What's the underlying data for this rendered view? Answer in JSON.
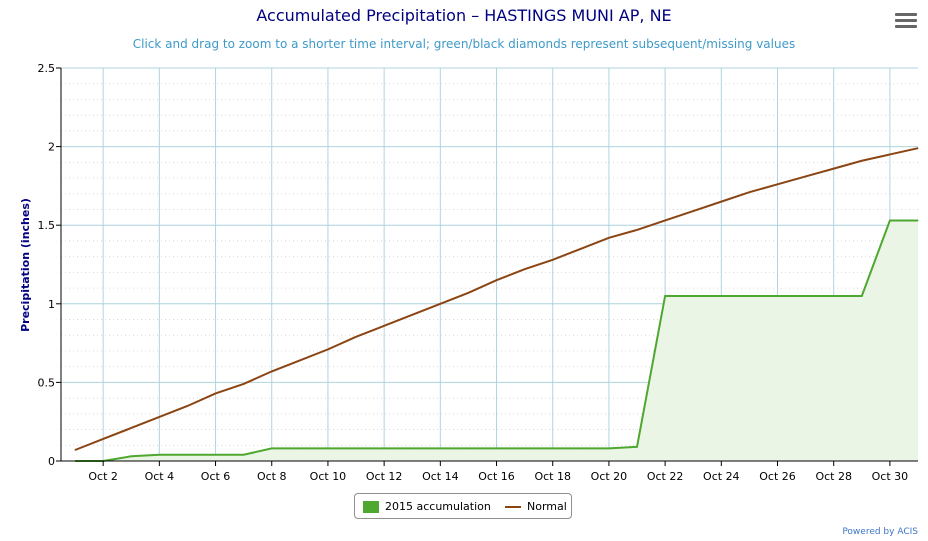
{
  "header": {
    "title": "Accumulated Precipitation – HASTINGS MUNI AP, NE",
    "subtitle": "Click and drag to zoom to a shorter time interval; green/black diamonds represent subsequent/missing values"
  },
  "credits": "Powered by ACIS",
  "colors": {
    "accumulation": "#4ea72e",
    "normal": "#8b4513",
    "area": "#eaf5e5",
    "grid": "#b0d4e0",
    "title": "#000080",
    "subtitle": "#3e9ac9"
  },
  "chart_data": {
    "type": "line",
    "title": "Accumulated Precipitation – HASTINGS MUNI AP, NE",
    "ylabel": "Precipitation (inches)",
    "xlabel": "",
    "ylim": [
      0,
      2.5
    ],
    "yticks": [
      "0",
      "0.5",
      "1",
      "1.5",
      "2",
      "2.5"
    ],
    "xticks": [
      "Oct 2",
      "Oct 4",
      "Oct 6",
      "Oct 8",
      "Oct 10",
      "Oct 12",
      "Oct 14",
      "Oct 16",
      "Oct 18",
      "Oct 20",
      "Oct 22",
      "Oct 24",
      "Oct 26",
      "Oct 28",
      "Oct 30"
    ],
    "x": [
      1,
      2,
      3,
      4,
      5,
      6,
      7,
      8,
      9,
      10,
      11,
      12,
      13,
      14,
      15,
      16,
      17,
      18,
      19,
      20,
      21,
      22,
      23,
      24,
      25,
      26,
      27,
      28,
      29,
      30,
      31
    ],
    "legend_position": "bottom-center",
    "grid": true,
    "series": [
      {
        "name": "2015 accumulation",
        "type": "area",
        "values": [
          0,
          0,
          0.03,
          0.04,
          0.04,
          0.04,
          0.04,
          0.08,
          0.08,
          0.08,
          0.08,
          0.08,
          0.08,
          0.08,
          0.08,
          0.08,
          0.08,
          0.08,
          0.08,
          0.08,
          0.09,
          1.05,
          1.05,
          1.05,
          1.05,
          1.05,
          1.05,
          1.05,
          1.05,
          1.53,
          1.53
        ]
      },
      {
        "name": "Normal",
        "type": "line",
        "values": [
          0.07,
          0.14,
          0.21,
          0.28,
          0.35,
          0.43,
          0.49,
          0.57,
          0.64,
          0.71,
          0.79,
          0.86,
          0.93,
          1.0,
          1.07,
          1.15,
          1.22,
          1.28,
          1.35,
          1.42,
          1.47,
          1.53,
          1.59,
          1.65,
          1.71,
          1.76,
          1.81,
          1.86,
          1.91,
          1.95,
          1.99
        ]
      }
    ]
  }
}
